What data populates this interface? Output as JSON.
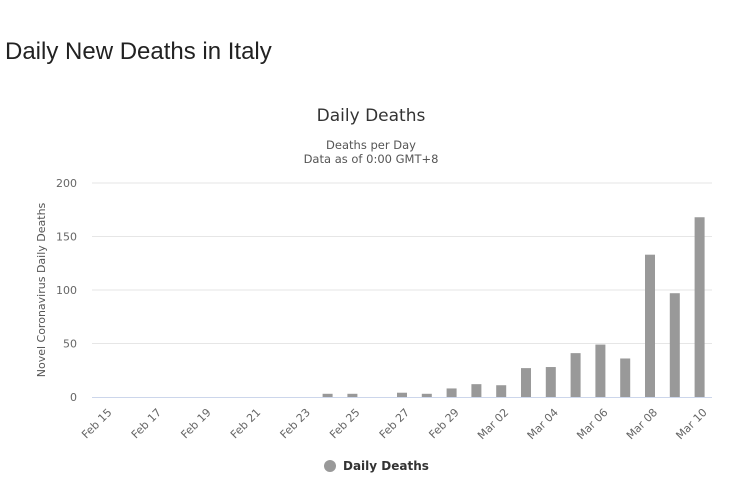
{
  "page": {
    "heading": "Daily New Deaths in Italy"
  },
  "chart_data": {
    "type": "bar",
    "title": "Daily Deaths",
    "subtitle_lines": [
      "Deaths per Day",
      "Data as of 0:00 GMT+8"
    ],
    "ylabel": "Novel Coronavirus Daily Deaths",
    "xlabel": "",
    "ylim": [
      0,
      200
    ],
    "yticks": [
      0,
      50,
      100,
      150,
      200
    ],
    "grid": true,
    "legend_position": "bottom-center",
    "categories": [
      "Feb 15",
      "Feb 16",
      "Feb 17",
      "Feb 18",
      "Feb 19",
      "Feb 20",
      "Feb 21",
      "Feb 22",
      "Feb 23",
      "Feb 24",
      "Feb 25",
      "Feb 26",
      "Feb 27",
      "Feb 28",
      "Feb 29",
      "Mar 01",
      "Mar 02",
      "Mar 03",
      "Mar 04",
      "Mar 05",
      "Mar 06",
      "Mar 07",
      "Mar 08",
      "Mar 09",
      "Mar 10"
    ],
    "x_tick_labels": [
      "Feb 15",
      "Feb 17",
      "Feb 19",
      "Feb 21",
      "Feb 23",
      "Feb 25",
      "Feb 27",
      "Feb 29",
      "Mar 02",
      "Mar 04",
      "Mar 06",
      "Mar 08",
      "Mar 10"
    ],
    "series": [
      {
        "name": "Daily Deaths",
        "color": "#999999",
        "values": [
          0,
          0,
          0,
          0,
          0,
          0,
          0,
          0,
          0,
          3,
          3,
          0,
          4,
          3,
          8,
          12,
          11,
          27,
          28,
          41,
          49,
          36,
          133,
          97,
          168
        ]
      }
    ]
  }
}
